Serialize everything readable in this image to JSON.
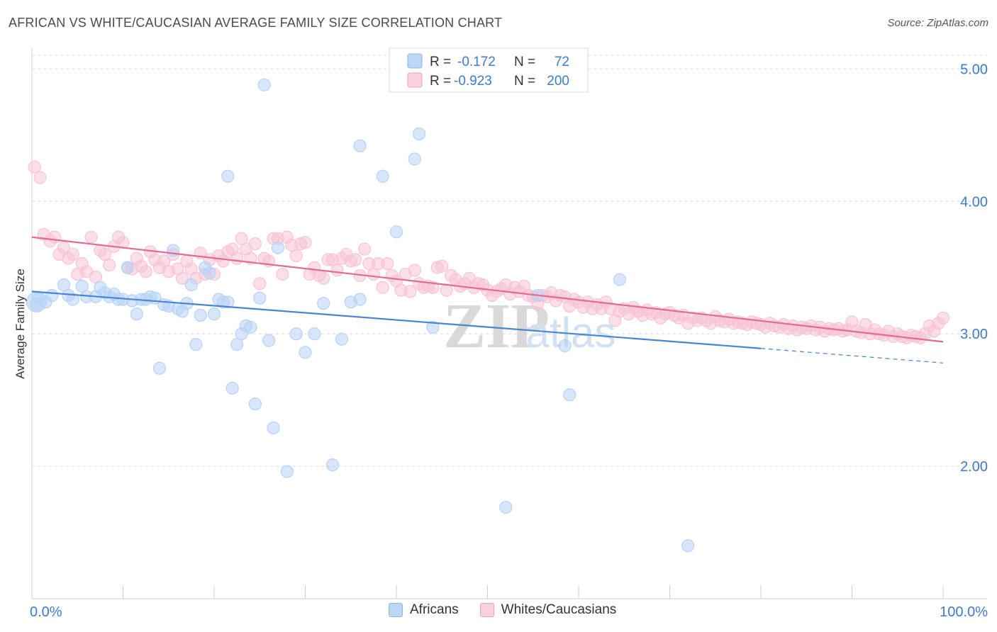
{
  "header": {
    "title": "AFRICAN VS WHITE/CAUCASIAN AVERAGE FAMILY SIZE CORRELATION CHART",
    "source": "Source: ZipAtlas.com"
  },
  "watermark": {
    "zip": "ZIP",
    "atlas": "atlas"
  },
  "legend": {
    "rows": [
      {
        "r_label": "R =",
        "r_value": "-0.172",
        "n_label": "N =",
        "n_value": "72",
        "color": "#a9c8f0"
      },
      {
        "r_label": "R =",
        "r_value": "-0.923",
        "n_label": "N =",
        "n_value": "200",
        "color": "#f6b6ca"
      }
    ]
  },
  "bottom_legend": [
    {
      "label": "Africans",
      "fill": "#bcd6f6",
      "stroke": "#8db4e6"
    },
    {
      "label": "Whites/Caucasians",
      "fill": "#fbd0de",
      "stroke": "#f0a0bb"
    }
  ],
  "chart_data": {
    "type": "scatter",
    "xlabel": "",
    "ylabel": "Average Family Size",
    "xlim": [
      0,
      100
    ],
    "ylim": [
      1.0,
      5.2
    ],
    "x_tick_labels": [
      "0.0%",
      "100.0%"
    ],
    "y_ticks": [
      2.0,
      3.0,
      4.0,
      5.0
    ],
    "y_tick_labels": [
      "2.00",
      "3.00",
      "4.00",
      "5.00"
    ],
    "grid": true,
    "legend_position": "top-center",
    "series": [
      {
        "name": "Africans",
        "color": "#4a85d1",
        "fill": "#b6d2f5",
        "trend": {
          "x0": 0,
          "y0": 3.32,
          "x1": 80,
          "y1": 2.89,
          "dash_to_x": 100,
          "dash_to_y": 2.78
        },
        "points": [
          [
            0.5,
            3.22
          ],
          [
            0.8,
            3.27
          ],
          [
            1.5,
            3.24
          ],
          [
            2.2,
            3.29
          ],
          [
            3.5,
            3.37
          ],
          [
            4.0,
            3.29
          ],
          [
            4.5,
            3.26
          ],
          [
            5.5,
            3.36
          ],
          [
            6.0,
            3.28
          ],
          [
            7.0,
            3.28
          ],
          [
            7.5,
            3.35
          ],
          [
            8.0,
            3.31
          ],
          [
            8.5,
            3.28
          ],
          [
            9.0,
            3.3
          ],
          [
            9.5,
            3.26
          ],
          [
            10.0,
            3.26
          ],
          [
            10.5,
            3.5
          ],
          [
            11.0,
            3.25
          ],
          [
            11.5,
            3.15
          ],
          [
            12.0,
            3.26
          ],
          [
            12.5,
            3.26
          ],
          [
            13.0,
            3.28
          ],
          [
            13.5,
            3.27
          ],
          [
            14.0,
            2.74
          ],
          [
            14.5,
            3.22
          ],
          [
            15.0,
            3.21
          ],
          [
            15.5,
            3.63
          ],
          [
            16.0,
            3.19
          ],
          [
            16.5,
            3.17
          ],
          [
            17.0,
            3.23
          ],
          [
            17.5,
            3.37
          ],
          [
            18.0,
            2.92
          ],
          [
            18.5,
            3.14
          ],
          [
            19.0,
            3.5
          ],
          [
            19.5,
            3.46
          ],
          [
            20.0,
            3.15
          ],
          [
            20.5,
            3.26
          ],
          [
            21.0,
            3.24
          ],
          [
            21.5,
            3.24
          ],
          [
            22.0,
            2.59
          ],
          [
            22.5,
            2.92
          ],
          [
            23.0,
            3.0
          ],
          [
            23.5,
            3.06
          ],
          [
            24.0,
            3.05
          ],
          [
            24.5,
            2.47
          ],
          [
            25.0,
            3.27
          ],
          [
            25.5,
            4.88
          ],
          [
            26.0,
            2.95
          ],
          [
            26.5,
            2.29
          ],
          [
            27.0,
            3.65
          ],
          [
            28.0,
            1.96
          ],
          [
            29.0,
            3.0
          ],
          [
            30.0,
            2.86
          ],
          [
            31.0,
            3.0
          ],
          [
            32.0,
            3.23
          ],
          [
            33.0,
            2.01
          ],
          [
            34.0,
            2.96
          ],
          [
            35.0,
            3.24
          ],
          [
            36.0,
            4.42
          ],
          [
            38.5,
            4.19
          ],
          [
            40.0,
            3.77
          ],
          [
            42.0,
            4.32
          ],
          [
            42.5,
            4.51
          ],
          [
            44.0,
            3.05
          ],
          [
            52.0,
            1.69
          ],
          [
            55.5,
            3.29
          ],
          [
            58.5,
            2.91
          ],
          [
            59.0,
            2.54
          ],
          [
            64.5,
            3.41
          ],
          [
            72.0,
            1.4
          ],
          [
            21.5,
            4.19
          ],
          [
            36.0,
            3.26
          ]
        ]
      },
      {
        "name": "Whites/Caucasians",
        "color": "#e06c93",
        "fill": "#f8c3d4",
        "trend": {
          "x0": 0,
          "y0": 3.73,
          "x1": 100,
          "y1": 2.94
        },
        "points": [
          [
            0.3,
            4.26
          ],
          [
            0.9,
            4.18
          ],
          [
            1.3,
            3.75
          ],
          [
            2.0,
            3.7
          ],
          [
            2.5,
            3.73
          ],
          [
            3.0,
            3.6
          ],
          [
            3.5,
            3.65
          ],
          [
            4.0,
            3.57
          ],
          [
            4.5,
            3.6
          ],
          [
            5.0,
            3.45
          ],
          [
            5.5,
            3.53
          ],
          [
            6.0,
            3.47
          ],
          [
            6.5,
            3.73
          ],
          [
            7.0,
            3.43
          ],
          [
            7.5,
            3.63
          ],
          [
            8.0,
            3.6
          ],
          [
            8.5,
            3.52
          ],
          [
            9.0,
            3.66
          ],
          [
            9.5,
            3.73
          ],
          [
            10.0,
            3.69
          ],
          [
            10.5,
            3.5
          ],
          [
            11.0,
            3.49
          ],
          [
            11.5,
            3.57
          ],
          [
            12.0,
            3.51
          ],
          [
            12.5,
            3.47
          ],
          [
            13.0,
            3.62
          ],
          [
            13.5,
            3.56
          ],
          [
            14.0,
            3.5
          ],
          [
            14.5,
            3.55
          ],
          [
            15.0,
            3.47
          ],
          [
            15.5,
            3.6
          ],
          [
            16.0,
            3.49
          ],
          [
            16.5,
            3.42
          ],
          [
            17.0,
            3.55
          ],
          [
            17.5,
            3.49
          ],
          [
            18.0,
            3.42
          ],
          [
            18.5,
            3.61
          ],
          [
            19.0,
            3.45
          ],
          [
            19.5,
            3.56
          ],
          [
            20.0,
            3.45
          ],
          [
            20.5,
            3.59
          ],
          [
            21.0,
            3.55
          ],
          [
            21.5,
            3.62
          ],
          [
            22.0,
            3.64
          ],
          [
            22.5,
            3.57
          ],
          [
            23.0,
            3.72
          ],
          [
            23.5,
            3.64
          ],
          [
            24.0,
            3.57
          ],
          [
            24.5,
            3.68
          ],
          [
            25.0,
            3.38
          ],
          [
            25.5,
            3.57
          ],
          [
            26.0,
            3.55
          ],
          [
            26.5,
            3.72
          ],
          [
            27.0,
            3.72
          ],
          [
            27.5,
            3.45
          ],
          [
            28.0,
            3.73
          ],
          [
            28.5,
            3.67
          ],
          [
            29.0,
            3.59
          ],
          [
            29.5,
            3.68
          ],
          [
            30.0,
            3.69
          ],
          [
            30.5,
            3.45
          ],
          [
            31.0,
            3.5
          ],
          [
            31.5,
            3.44
          ],
          [
            32.0,
            3.42
          ],
          [
            32.5,
            3.56
          ],
          [
            33.0,
            3.56
          ],
          [
            33.5,
            3.48
          ],
          [
            34.0,
            3.57
          ],
          [
            34.5,
            3.6
          ],
          [
            35.0,
            3.55
          ],
          [
            35.5,
            3.56
          ],
          [
            36.0,
            3.44
          ],
          [
            36.5,
            3.64
          ],
          [
            37.0,
            3.53
          ],
          [
            37.5,
            3.45
          ],
          [
            38.0,
            3.53
          ],
          [
            38.5,
            3.35
          ],
          [
            39.0,
            3.53
          ],
          [
            39.5,
            3.44
          ],
          [
            40.0,
            3.4
          ],
          [
            40.5,
            3.33
          ],
          [
            41.0,
            3.45
          ],
          [
            41.5,
            3.32
          ],
          [
            42.0,
            3.48
          ],
          [
            42.5,
            3.38
          ],
          [
            43.0,
            3.35
          ],
          [
            43.5,
            3.36
          ],
          [
            44.0,
            3.35
          ],
          [
            44.5,
            3.5
          ],
          [
            45.0,
            3.51
          ],
          [
            45.5,
            3.33
          ],
          [
            46.0,
            3.44
          ],
          [
            46.5,
            3.41
          ],
          [
            47.0,
            3.36
          ],
          [
            47.5,
            3.38
          ],
          [
            48.0,
            3.42
          ],
          [
            48.5,
            3.35
          ],
          [
            49.0,
            3.38
          ],
          [
            49.5,
            3.37
          ],
          [
            50.0,
            3.33
          ],
          [
            50.5,
            3.29
          ],
          [
            51.0,
            3.32
          ],
          [
            51.5,
            3.34
          ],
          [
            52.0,
            3.37
          ],
          [
            52.5,
            3.3
          ],
          [
            53.0,
            3.35
          ],
          [
            53.5,
            3.32
          ],
          [
            54.0,
            3.36
          ],
          [
            54.5,
            3.29
          ],
          [
            55.0,
            3.28
          ],
          [
            55.5,
            3.23
          ],
          [
            56.0,
            3.29
          ],
          [
            56.5,
            3.28
          ],
          [
            57.0,
            3.31
          ],
          [
            57.5,
            3.25
          ],
          [
            58.0,
            3.29
          ],
          [
            58.5,
            3.28
          ],
          [
            59.0,
            3.21
          ],
          [
            59.5,
            3.26
          ],
          [
            60.0,
            3.24
          ],
          [
            60.5,
            3.2
          ],
          [
            61.0,
            3.24
          ],
          [
            61.5,
            3.19
          ],
          [
            62.0,
            3.22
          ],
          [
            62.5,
            3.19
          ],
          [
            63.0,
            3.24
          ],
          [
            63.5,
            3.19
          ],
          [
            64.0,
            3.1
          ],
          [
            64.5,
            3.17
          ],
          [
            65.0,
            3.19
          ],
          [
            65.5,
            3.15
          ],
          [
            66.0,
            3.2
          ],
          [
            66.5,
            3.17
          ],
          [
            67.0,
            3.14
          ],
          [
            67.5,
            3.18
          ],
          [
            68.0,
            3.15
          ],
          [
            68.5,
            3.16
          ],
          [
            69.0,
            3.12
          ],
          [
            69.5,
            3.15
          ],
          [
            70.0,
            3.16
          ],
          [
            70.5,
            3.14
          ],
          [
            71.0,
            3.12
          ],
          [
            71.5,
            3.14
          ],
          [
            72.0,
            3.08
          ],
          [
            72.5,
            3.12
          ],
          [
            73.0,
            3.1
          ],
          [
            73.5,
            3.12
          ],
          [
            74.0,
            3.1
          ],
          [
            74.5,
            3.08
          ],
          [
            75.0,
            3.13
          ],
          [
            75.5,
            3.1
          ],
          [
            76.0,
            3.09
          ],
          [
            76.5,
            3.11
          ],
          [
            77.0,
            3.08
          ],
          [
            77.5,
            3.09
          ],
          [
            78.0,
            3.08
          ],
          [
            78.5,
            3.07
          ],
          [
            79.0,
            3.09
          ],
          [
            79.5,
            3.08
          ],
          [
            80.0,
            3.07
          ],
          [
            80.5,
            3.05
          ],
          [
            81.0,
            3.08
          ],
          [
            81.5,
            3.06
          ],
          [
            82.0,
            3.05
          ],
          [
            82.5,
            3.07
          ],
          [
            83.0,
            3.04
          ],
          [
            83.5,
            3.06
          ],
          [
            84.0,
            3.03
          ],
          [
            84.5,
            3.05
          ],
          [
            85.0,
            3.04
          ],
          [
            85.5,
            3.06
          ],
          [
            86.0,
            3.03
          ],
          [
            86.5,
            3.05
          ],
          [
            87.0,
            3.02
          ],
          [
            87.5,
            3.04
          ],
          [
            88.0,
            3.03
          ],
          [
            88.5,
            3.04
          ],
          [
            89.0,
            3.02
          ],
          [
            89.5,
            3.03
          ],
          [
            90.0,
            3.09
          ],
          [
            90.5,
            3.02
          ],
          [
            91.0,
            3.01
          ],
          [
            91.5,
            3.07
          ],
          [
            92.0,
            3.0
          ],
          [
            92.5,
            3.03
          ],
          [
            93.0,
            3.0
          ],
          [
            93.5,
            2.99
          ],
          [
            94.0,
            3.02
          ],
          [
            94.5,
            2.98
          ],
          [
            95.0,
            3.0
          ],
          [
            95.5,
            2.98
          ],
          [
            96.0,
            2.97
          ],
          [
            96.5,
            2.99
          ],
          [
            97.0,
            2.98
          ],
          [
            97.5,
            2.97
          ],
          [
            98.0,
            3.0
          ],
          [
            98.5,
            3.06
          ],
          [
            99.0,
            3.02
          ],
          [
            99.5,
            3.08
          ],
          [
            100.0,
            3.12
          ]
        ]
      }
    ]
  }
}
